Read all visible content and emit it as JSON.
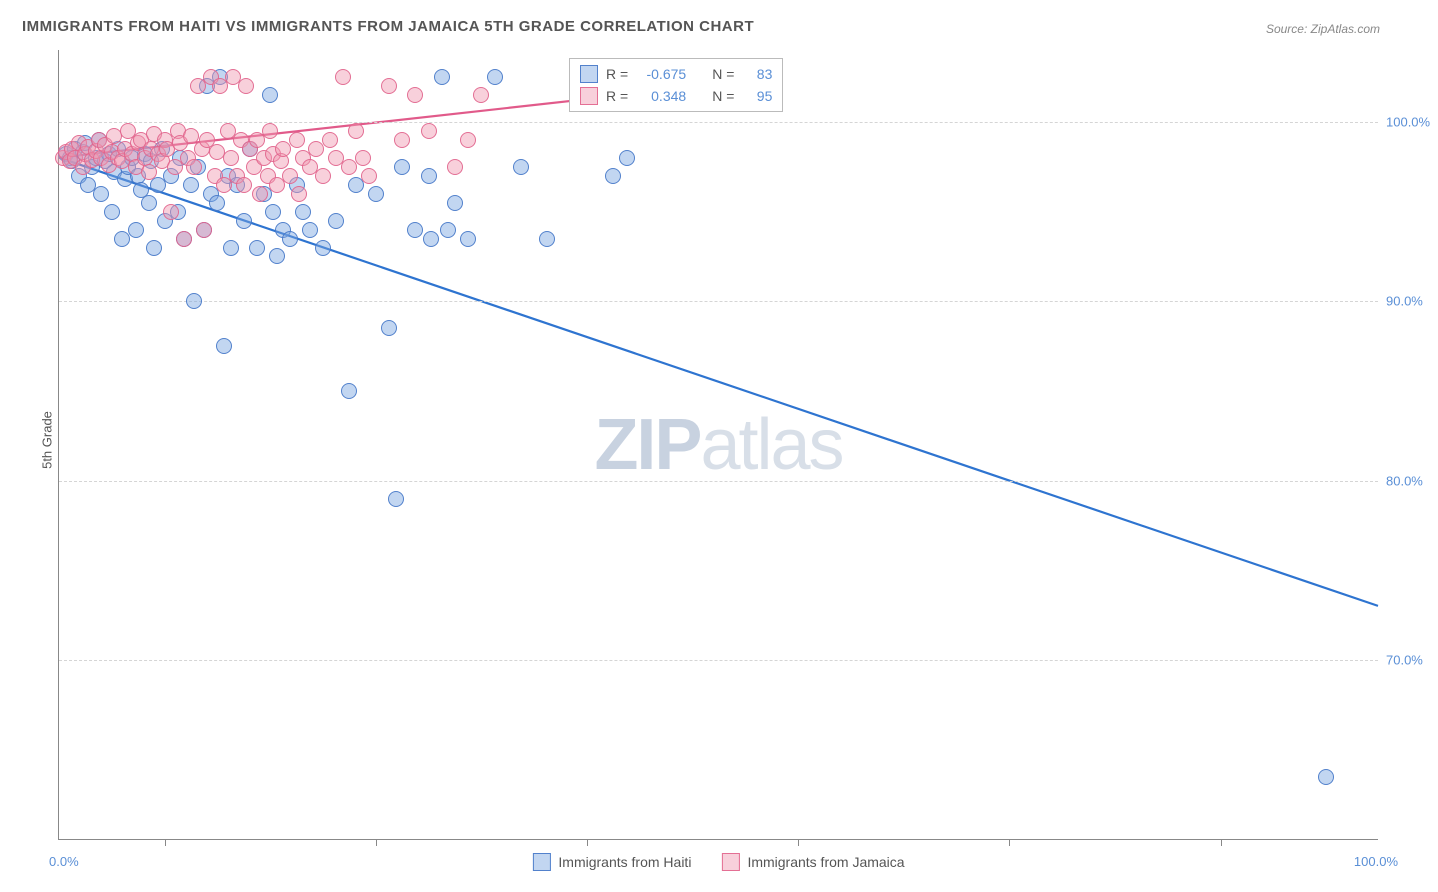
{
  "title": "IMMIGRANTS FROM HAITI VS IMMIGRANTS FROM JAMAICA 5TH GRADE CORRELATION CHART",
  "source": "Source: ZipAtlas.com",
  "y_axis_label": "5th Grade",
  "watermark": {
    "zip": "ZIP",
    "atlas": "atlas"
  },
  "x_axis": {
    "min_label": "0.0%",
    "max_label": "100.0%",
    "min": 0,
    "max": 100,
    "tick_positions": [
      8,
      24,
      40,
      56,
      72,
      88
    ]
  },
  "y_axis": {
    "min": 60,
    "max": 104,
    "ticks": [
      {
        "value": 100,
        "label": "100.0%"
      },
      {
        "value": 90,
        "label": "90.0%"
      },
      {
        "value": 80,
        "label": "80.0%"
      },
      {
        "value": 70,
        "label": "70.0%"
      }
    ]
  },
  "colors": {
    "blue_fill": "rgba(120,165,225,0.45)",
    "blue_stroke": "#2e74d0",
    "pink_fill": "rgba(240,150,175,0.45)",
    "pink_stroke": "#e15a8a",
    "grid": "#d5d5d5",
    "axis": "#888",
    "text": "#555",
    "value_text": "#5a8fd6"
  },
  "marker_radius": 8,
  "legend_top": [
    {
      "color": "blue",
      "r_label": "R =",
      "r_value": "-0.675",
      "n_label": "N =",
      "n_value": "83"
    },
    {
      "color": "pink",
      "r_label": "R =",
      "r_value": "0.348",
      "n_label": "N =",
      "n_value": "95"
    }
  ],
  "legend_bottom": [
    {
      "color": "blue",
      "label": "Immigrants from Haiti"
    },
    {
      "color": "pink",
      "label": "Immigrants from Jamaica"
    }
  ],
  "trend_lines": [
    {
      "color": "#2e74d0",
      "width": 2.2,
      "x1": 0,
      "y1": 98.0,
      "x2": 100,
      "y2": 73.0
    },
    {
      "color": "#e15a8a",
      "width": 2.2,
      "x1": 0,
      "y1": 98.0,
      "x2": 43,
      "y2": 101.5
    }
  ],
  "series": [
    {
      "name": "haiti",
      "css": "blue-pt",
      "points": [
        [
          0.5,
          98.2
        ],
        [
          0.8,
          98.0
        ],
        [
          1.0,
          97.8
        ],
        [
          1.2,
          98.5
        ],
        [
          1.5,
          97.0
        ],
        [
          1.8,
          98.3
        ],
        [
          2.0,
          98.8
        ],
        [
          2.2,
          96.5
        ],
        [
          2.5,
          97.5
        ],
        [
          2.8,
          98.0
        ],
        [
          3.0,
          99.0
        ],
        [
          3.2,
          96.0
        ],
        [
          3.5,
          97.8
        ],
        [
          3.8,
          98.2
        ],
        [
          4.0,
          95.0
        ],
        [
          4.2,
          97.2
        ],
        [
          4.5,
          98.5
        ],
        [
          4.8,
          93.5
        ],
        [
          5.0,
          96.8
        ],
        [
          5.2,
          97.5
        ],
        [
          5.5,
          98.0
        ],
        [
          5.8,
          94.0
        ],
        [
          6.0,
          97.0
        ],
        [
          6.2,
          96.2
        ],
        [
          6.5,
          98.2
        ],
        [
          6.8,
          95.5
        ],
        [
          7.0,
          97.8
        ],
        [
          7.2,
          93.0
        ],
        [
          7.5,
          96.5
        ],
        [
          7.8,
          98.5
        ],
        [
          8.0,
          94.5
        ],
        [
          8.5,
          97.0
        ],
        [
          9.0,
          95.0
        ],
        [
          9.2,
          98.0
        ],
        [
          9.5,
          93.5
        ],
        [
          10.0,
          96.5
        ],
        [
          10.2,
          90.0
        ],
        [
          10.5,
          97.5
        ],
        [
          11.0,
          94.0
        ],
        [
          11.2,
          102.0
        ],
        [
          11.5,
          96.0
        ],
        [
          12.0,
          95.5
        ],
        [
          12.2,
          102.5
        ],
        [
          12.5,
          87.5
        ],
        [
          12.8,
          97.0
        ],
        [
          13.0,
          93.0
        ],
        [
          13.5,
          96.5
        ],
        [
          14.0,
          94.5
        ],
        [
          14.5,
          98.5
        ],
        [
          15.0,
          93.0
        ],
        [
          15.5,
          96.0
        ],
        [
          16.0,
          101.5
        ],
        [
          16.2,
          95.0
        ],
        [
          16.5,
          92.5
        ],
        [
          17.0,
          94.0
        ],
        [
          17.5,
          93.5
        ],
        [
          18.0,
          96.5
        ],
        [
          18.5,
          95.0
        ],
        [
          19.0,
          94.0
        ],
        [
          20.0,
          93.0
        ],
        [
          21.0,
          94.5
        ],
        [
          22.0,
          85.0
        ],
        [
          22.5,
          96.5
        ],
        [
          24.0,
          96.0
        ],
        [
          25.0,
          88.5
        ],
        [
          25.5,
          79.0
        ],
        [
          26.0,
          97.5
        ],
        [
          27.0,
          94.0
        ],
        [
          28.0,
          97.0
        ],
        [
          28.2,
          93.5
        ],
        [
          29.0,
          102.5
        ],
        [
          29.5,
          94.0
        ],
        [
          30.0,
          95.5
        ],
        [
          31.0,
          93.5
        ],
        [
          33.0,
          102.5
        ],
        [
          35.0,
          97.5
        ],
        [
          37.0,
          93.5
        ],
        [
          42.0,
          97.0
        ],
        [
          43.0,
          98.0
        ],
        [
          96.0,
          63.5
        ]
      ]
    },
    {
      "name": "jamaica",
      "css": "pink-pt",
      "points": [
        [
          0.3,
          98.0
        ],
        [
          0.5,
          98.3
        ],
        [
          0.8,
          97.8
        ],
        [
          1.0,
          98.5
        ],
        [
          1.2,
          98.0
        ],
        [
          1.5,
          98.8
        ],
        [
          1.8,
          97.5
        ],
        [
          2.0,
          98.2
        ],
        [
          2.2,
          98.6
        ],
        [
          2.5,
          97.9
        ],
        [
          2.8,
          98.4
        ],
        [
          3.0,
          99.0
        ],
        [
          3.2,
          98.0
        ],
        [
          3.5,
          98.7
        ],
        [
          3.8,
          97.6
        ],
        [
          4.0,
          98.3
        ],
        [
          4.2,
          99.2
        ],
        [
          4.5,
          98.0
        ],
        [
          4.8,
          97.8
        ],
        [
          5.0,
          98.5
        ],
        [
          5.2,
          99.5
        ],
        [
          5.5,
          98.2
        ],
        [
          5.8,
          97.5
        ],
        [
          6.0,
          98.8
        ],
        [
          6.2,
          99.0
        ],
        [
          6.5,
          98.0
        ],
        [
          6.8,
          97.2
        ],
        [
          7.0,
          98.5
        ],
        [
          7.2,
          99.3
        ],
        [
          7.5,
          98.2
        ],
        [
          7.8,
          97.8
        ],
        [
          8.0,
          99.0
        ],
        [
          8.2,
          98.5
        ],
        [
          8.5,
          95.0
        ],
        [
          8.8,
          97.5
        ],
        [
          9.0,
          99.5
        ],
        [
          9.2,
          98.8
        ],
        [
          9.5,
          93.5
        ],
        [
          9.8,
          98.0
        ],
        [
          10.0,
          99.2
        ],
        [
          10.2,
          97.5
        ],
        [
          10.5,
          102.0
        ],
        [
          10.8,
          98.5
        ],
        [
          11.0,
          94.0
        ],
        [
          11.2,
          99.0
        ],
        [
          11.5,
          102.5
        ],
        [
          11.8,
          97.0
        ],
        [
          12.0,
          98.3
        ],
        [
          12.2,
          102.0
        ],
        [
          12.5,
          96.5
        ],
        [
          12.8,
          99.5
        ],
        [
          13.0,
          98.0
        ],
        [
          13.2,
          102.5
        ],
        [
          13.5,
          97.0
        ],
        [
          13.8,
          99.0
        ],
        [
          14.0,
          96.5
        ],
        [
          14.2,
          102.0
        ],
        [
          14.5,
          98.5
        ],
        [
          14.8,
          97.5
        ],
        [
          15.0,
          99.0
        ],
        [
          15.2,
          96.0
        ],
        [
          15.5,
          98.0
        ],
        [
          15.8,
          97.0
        ],
        [
          16.0,
          99.5
        ],
        [
          16.2,
          98.2
        ],
        [
          16.5,
          96.5
        ],
        [
          16.8,
          97.8
        ],
        [
          17.0,
          98.5
        ],
        [
          17.5,
          97.0
        ],
        [
          18.0,
          99.0
        ],
        [
          18.2,
          96.0
        ],
        [
          18.5,
          98.0
        ],
        [
          19.0,
          97.5
        ],
        [
          19.5,
          98.5
        ],
        [
          20.0,
          97.0
        ],
        [
          20.5,
          99.0
        ],
        [
          21.0,
          98.0
        ],
        [
          21.5,
          102.5
        ],
        [
          22.0,
          97.5
        ],
        [
          22.5,
          99.5
        ],
        [
          23.0,
          98.0
        ],
        [
          23.5,
          97.0
        ],
        [
          25.0,
          102.0
        ],
        [
          26.0,
          99.0
        ],
        [
          27.0,
          101.5
        ],
        [
          28.0,
          99.5
        ],
        [
          30.0,
          97.5
        ],
        [
          31.0,
          99.0
        ],
        [
          32.0,
          101.5
        ]
      ]
    }
  ]
}
